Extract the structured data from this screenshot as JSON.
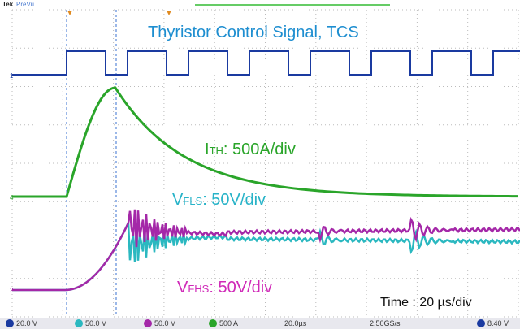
{
  "header": {
    "brand": "Tek",
    "mode": "PreVu"
  },
  "annotations": {
    "tcs": "Thyristor Control Signal, TCS",
    "ith": {
      "symbol": "I",
      "sub": "TH",
      "scale": ": 500A/div"
    },
    "vfls": {
      "symbol": "V",
      "sub": "FLS",
      "scale": ": 50V/div"
    },
    "vfhs": {
      "symbol": "V",
      "sub": "FHS",
      "scale": ": 50V/div"
    },
    "time": "Time : 20 µs/div"
  },
  "channels": [
    "1",
    "4",
    "2"
  ],
  "status_bar": [
    "20.0 V",
    "50.0 V",
    "50.0 V",
    "500 A",
    "20.0µs",
    "2.50GS/s",
    "8.40 V"
  ]
}
